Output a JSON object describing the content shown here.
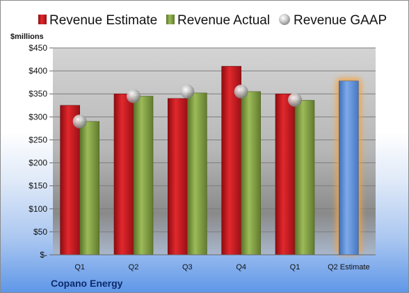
{
  "company": "Copano Energy",
  "colors": {
    "estimate": "#c0171c",
    "actual": "#7f9b3f",
    "gaap": "#b8b8b8",
    "projection": "#5b8fd8",
    "projection_glow": "#f4a340"
  },
  "chart_data": {
    "type": "bar",
    "ylabel": "$millions",
    "ylim": [
      0,
      450
    ],
    "yticks": [
      "$-",
      "$50",
      "$100",
      "$150",
      "$200",
      "$250",
      "$300",
      "$350",
      "$400",
      "$450"
    ],
    "ytick_values": [
      0,
      50,
      100,
      150,
      200,
      250,
      300,
      350,
      400,
      450
    ],
    "categories": [
      "Q1",
      "Q2",
      "Q3",
      "Q4",
      "Q1",
      "Q2 Estimate"
    ],
    "legend_position": "top",
    "grid": true,
    "series": [
      {
        "name": "Revenue Estimate",
        "values": [
          325,
          350,
          340,
          410,
          350,
          null
        ]
      },
      {
        "name": "Revenue Actual",
        "values": [
          290,
          345,
          352,
          355,
          336,
          378
        ]
      },
      {
        "name": "Revenue GAAP",
        "values": [
          290,
          345,
          355,
          355,
          337,
          null
        ]
      }
    ]
  }
}
